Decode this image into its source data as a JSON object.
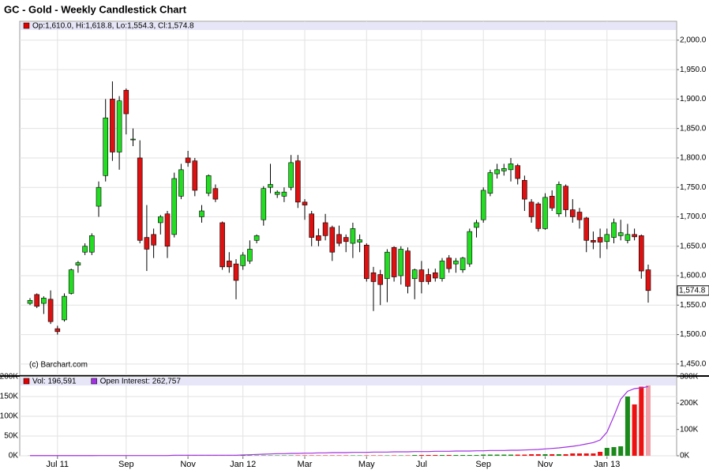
{
  "chart_data": [
    {
      "type": "candlestick",
      "title": "GC - Gold - Weekly Candlestick Chart",
      "legend_text": "Op:1,610.0, Hi:1,618.8, Lo:1,554.3, Cl:1,574.8",
      "legend_color": "#e00000",
      "watermark": "(c) Barchart.com",
      "categories": [
        null,
        null,
        null,
        null,
        "Jul 11",
        null,
        null,
        null,
        null,
        null,
        null,
        null,
        null,
        null,
        "Sep",
        null,
        null,
        null,
        null,
        null,
        null,
        null,
        null,
        "Nov",
        null,
        null,
        null,
        null,
        null,
        null,
        null,
        "Jan 12",
        null,
        null,
        null,
        null,
        null,
        null,
        null,
        null,
        "Mar",
        null,
        null,
        null,
        null,
        null,
        null,
        null,
        null,
        "May",
        null,
        null,
        null,
        null,
        null,
        null,
        null,
        "Jul",
        null,
        null,
        null,
        null,
        null,
        null,
        null,
        null,
        "Sep",
        null,
        null,
        null,
        null,
        null,
        null,
        null,
        null,
        "Nov",
        null,
        null,
        null,
        null,
        null,
        null,
        null,
        null,
        "Jan 13",
        null,
        null,
        null,
        null,
        null,
        null
      ],
      "open": [
        1553,
        1568,
        1553,
        1560,
        1510,
        1525,
        1570,
        1618,
        1640,
        1640,
        1718,
        1770,
        1900,
        1810,
        1915,
        1832,
        1800,
        1665,
        1670,
        1690,
        1705,
        1670,
        1735,
        1800,
        1795,
        1700,
        1740,
        1748,
        1690,
        1625,
        1620,
        1617,
        1625,
        1660,
        1695,
        1750,
        1738,
        1735,
        1750,
        1795,
        1725,
        1705,
        1668,
        1690,
        1682,
        1670,
        1665,
        1655,
        1657,
        1652,
        1605,
        1602,
        1595,
        1648,
        1600,
        1642,
        1595,
        1610,
        1602,
        1605,
        1595,
        1630,
        1620,
        1610,
        1620,
        1682,
        1695,
        1740,
        1773,
        1778,
        1780,
        1787,
        1762,
        1725,
        1722,
        1680,
        1735,
        1705,
        1752,
        1712,
        1708,
        1698,
        1660,
        1665,
        1658,
        1665,
        1668,
        1660,
        1670,
        1668,
        1610
      ],
      "high": [
        1562,
        1570,
        1565,
        1575,
        1515,
        1570,
        1612,
        1625,
        1655,
        1672,
        1760,
        1900,
        1930,
        1905,
        1918,
        1850,
        1830,
        1720,
        1680,
        1703,
        1710,
        1775,
        1790,
        1812,
        1800,
        1720,
        1772,
        1755,
        1692,
        1640,
        1628,
        1640,
        1660,
        1670,
        1752,
        1790,
        1745,
        1750,
        1805,
        1805,
        1730,
        1710,
        1680,
        1705,
        1685,
        1685,
        1670,
        1690,
        1670,
        1655,
        1615,
        1610,
        1645,
        1650,
        1650,
        1648,
        1612,
        1625,
        1612,
        1612,
        1630,
        1635,
        1630,
        1632,
        1680,
        1695,
        1750,
        1780,
        1790,
        1790,
        1800,
        1790,
        1770,
        1730,
        1725,
        1740,
        1745,
        1760,
        1755,
        1730,
        1715,
        1700,
        1675,
        1680,
        1680,
        1697,
        1695,
        1688,
        1680,
        1670,
        1618.8
      ],
      "low": [
        1550,
        1545,
        1535,
        1518,
        1500,
        1522,
        1568,
        1605,
        1635,
        1635,
        1700,
        1760,
        1795,
        1780,
        1840,
        1820,
        1655,
        1608,
        1630,
        1670,
        1630,
        1665,
        1730,
        1785,
        1735,
        1690,
        1735,
        1725,
        1610,
        1605,
        1560,
        1610,
        1620,
        1655,
        1685,
        1740,
        1732,
        1725,
        1745,
        1715,
        1695,
        1650,
        1650,
        1660,
        1625,
        1650,
        1640,
        1630,
        1640,
        1590,
        1540,
        1550,
        1555,
        1590,
        1585,
        1570,
        1560,
        1570,
        1585,
        1590,
        1590,
        1605,
        1605,
        1605,
        1615,
        1665,
        1690,
        1735,
        1765,
        1770,
        1760,
        1755,
        1710,
        1690,
        1675,
        1678,
        1710,
        1700,
        1700,
        1690,
        1680,
        1640,
        1645,
        1630,
        1645,
        1655,
        1660,
        1655,
        1660,
        1595,
        1554.3
      ],
      "close": [
        1558,
        1548,
        1562,
        1522,
        1505,
        1565,
        1610,
        1622,
        1650,
        1668,
        1750,
        1868,
        1810,
        1897,
        1875,
        1832,
        1660,
        1645,
        1652,
        1700,
        1650,
        1765,
        1780,
        1792,
        1745,
        1710,
        1770,
        1730,
        1615,
        1615,
        1592,
        1635,
        1645,
        1668,
        1748,
        1755,
        1742,
        1742,
        1792,
        1725,
        1720,
        1665,
        1660,
        1668,
        1640,
        1655,
        1658,
        1680,
        1661,
        1595,
        1590,
        1585,
        1640,
        1598,
        1645,
        1582,
        1610,
        1590,
        1590,
        1596,
        1625,
        1612,
        1625,
        1630,
        1675,
        1690,
        1745,
        1775,
        1780,
        1782,
        1790,
        1765,
        1730,
        1700,
        1680,
        1733,
        1715,
        1755,
        1712,
        1700,
        1695,
        1660,
        1657,
        1657,
        1670,
        1690,
        1673,
        1670,
        1666,
        1608,
        1574.8
      ],
      "up_color": "#22dd22",
      "down_color": "#dd1111",
      "last_label": {
        "value": 1574.8,
        "label": "1,574.8"
      },
      "ylim": [
        1431,
        2032
      ],
      "yticks": [
        {
          "value": 1450,
          "label": "1,450.0"
        },
        {
          "value": 1500,
          "label": "1,500.0"
        },
        {
          "value": 1550,
          "label": "1,550.0"
        },
        {
          "value": 1600,
          "label": "1,600.0"
        },
        {
          "value": 1650,
          "label": "1,650.0"
        },
        {
          "value": 1700,
          "label": "1,700.0"
        },
        {
          "value": 1750,
          "label": "1,750.0"
        },
        {
          "value": 1800,
          "label": "1,800.0"
        },
        {
          "value": 1850,
          "label": "1,850.0"
        },
        {
          "value": 1900,
          "label": "1,900.0"
        },
        {
          "value": 1950,
          "label": "1,950.0"
        },
        {
          "value": 2000,
          "label": "2,000.0"
        }
      ],
      "grid": true
    },
    {
      "type": "bar",
      "series": [
        {
          "name": "Vol: 196,591",
          "color": "#e00000",
          "up_color": "#1a8a1a",
          "down_color": "#ee1111",
          "current_color": "#f0a0a8",
          "values": [
            300,
            300,
            300,
            300,
            300,
            300,
            300,
            300,
            300,
            300,
            300,
            300,
            300,
            300,
            300,
            300,
            300,
            300,
            300,
            300,
            300,
            300,
            300,
            300,
            300,
            300,
            300,
            300,
            300,
            300,
            300,
            1000,
            1000,
            1000,
            1000,
            1000,
            1000,
            1000,
            1000,
            1000,
            1000,
            1000,
            1000,
            1000,
            1000,
            1000,
            1000,
            1000,
            1000,
            1000,
            1000,
            1000,
            1000,
            1000,
            1000,
            1000,
            2000,
            2000,
            2000,
            2000,
            2000,
            2000,
            2000,
            2000,
            2000,
            2000,
            3000,
            3000,
            3000,
            3000,
            3000,
            3000,
            3000,
            4000,
            4000,
            4000,
            4000,
            4000,
            4000,
            6000,
            6000,
            6000,
            6000,
            10000,
            20000,
            22000,
            24000,
            150000,
            130000,
            175000,
            196591
          ]
        },
        {
          "name": "Open Interest: 262,757",
          "color": "#a030e0",
          "axis": "y2",
          "values": [
            800,
            800,
            800,
            800,
            800,
            800,
            800,
            800,
            800,
            800,
            1000,
            1000,
            1000,
            1000,
            1000,
            1000,
            1000,
            1000,
            1000,
            1000,
            1000,
            2000,
            2000,
            2000,
            2000,
            2000,
            2000,
            2000,
            2000,
            2000,
            2000,
            3000,
            4000,
            5000,
            6000,
            7000,
            8000,
            8000,
            9000,
            9000,
            10000,
            10000,
            11000,
            11000,
            12000,
            12000,
            12000,
            13000,
            13000,
            13000,
            14000,
            14000,
            14000,
            15000,
            15000,
            15000,
            16000,
            16000,
            16000,
            17000,
            17000,
            17000,
            18000,
            18000,
            18000,
            19000,
            19000,
            20000,
            20000,
            20000,
            21000,
            21000,
            22000,
            23000,
            24000,
            26000,
            28000,
            30000,
            33000,
            36000,
            40000,
            45000,
            50000,
            60000,
            90000,
            150000,
            215000,
            245000,
            255000,
            258000,
            262757
          ]
        }
      ],
      "ylim": [
        0,
        200000
      ],
      "yticks": [
        {
          "value": 0,
          "label": "0K"
        },
        {
          "value": 50000,
          "label": "50K"
        },
        {
          "value": 100000,
          "label": "100K"
        },
        {
          "value": 150000,
          "label": "150K"
        },
        {
          "value": 200000,
          "label": "200K"
        }
      ],
      "y2lim": [
        0,
        300000
      ],
      "y2ticks": [
        {
          "value": 0,
          "label": "0K"
        },
        {
          "value": 100000,
          "label": "100K"
        },
        {
          "value": 200000,
          "label": "200K"
        },
        {
          "value": 300000,
          "label": "300K"
        }
      ],
      "grid": true
    }
  ]
}
